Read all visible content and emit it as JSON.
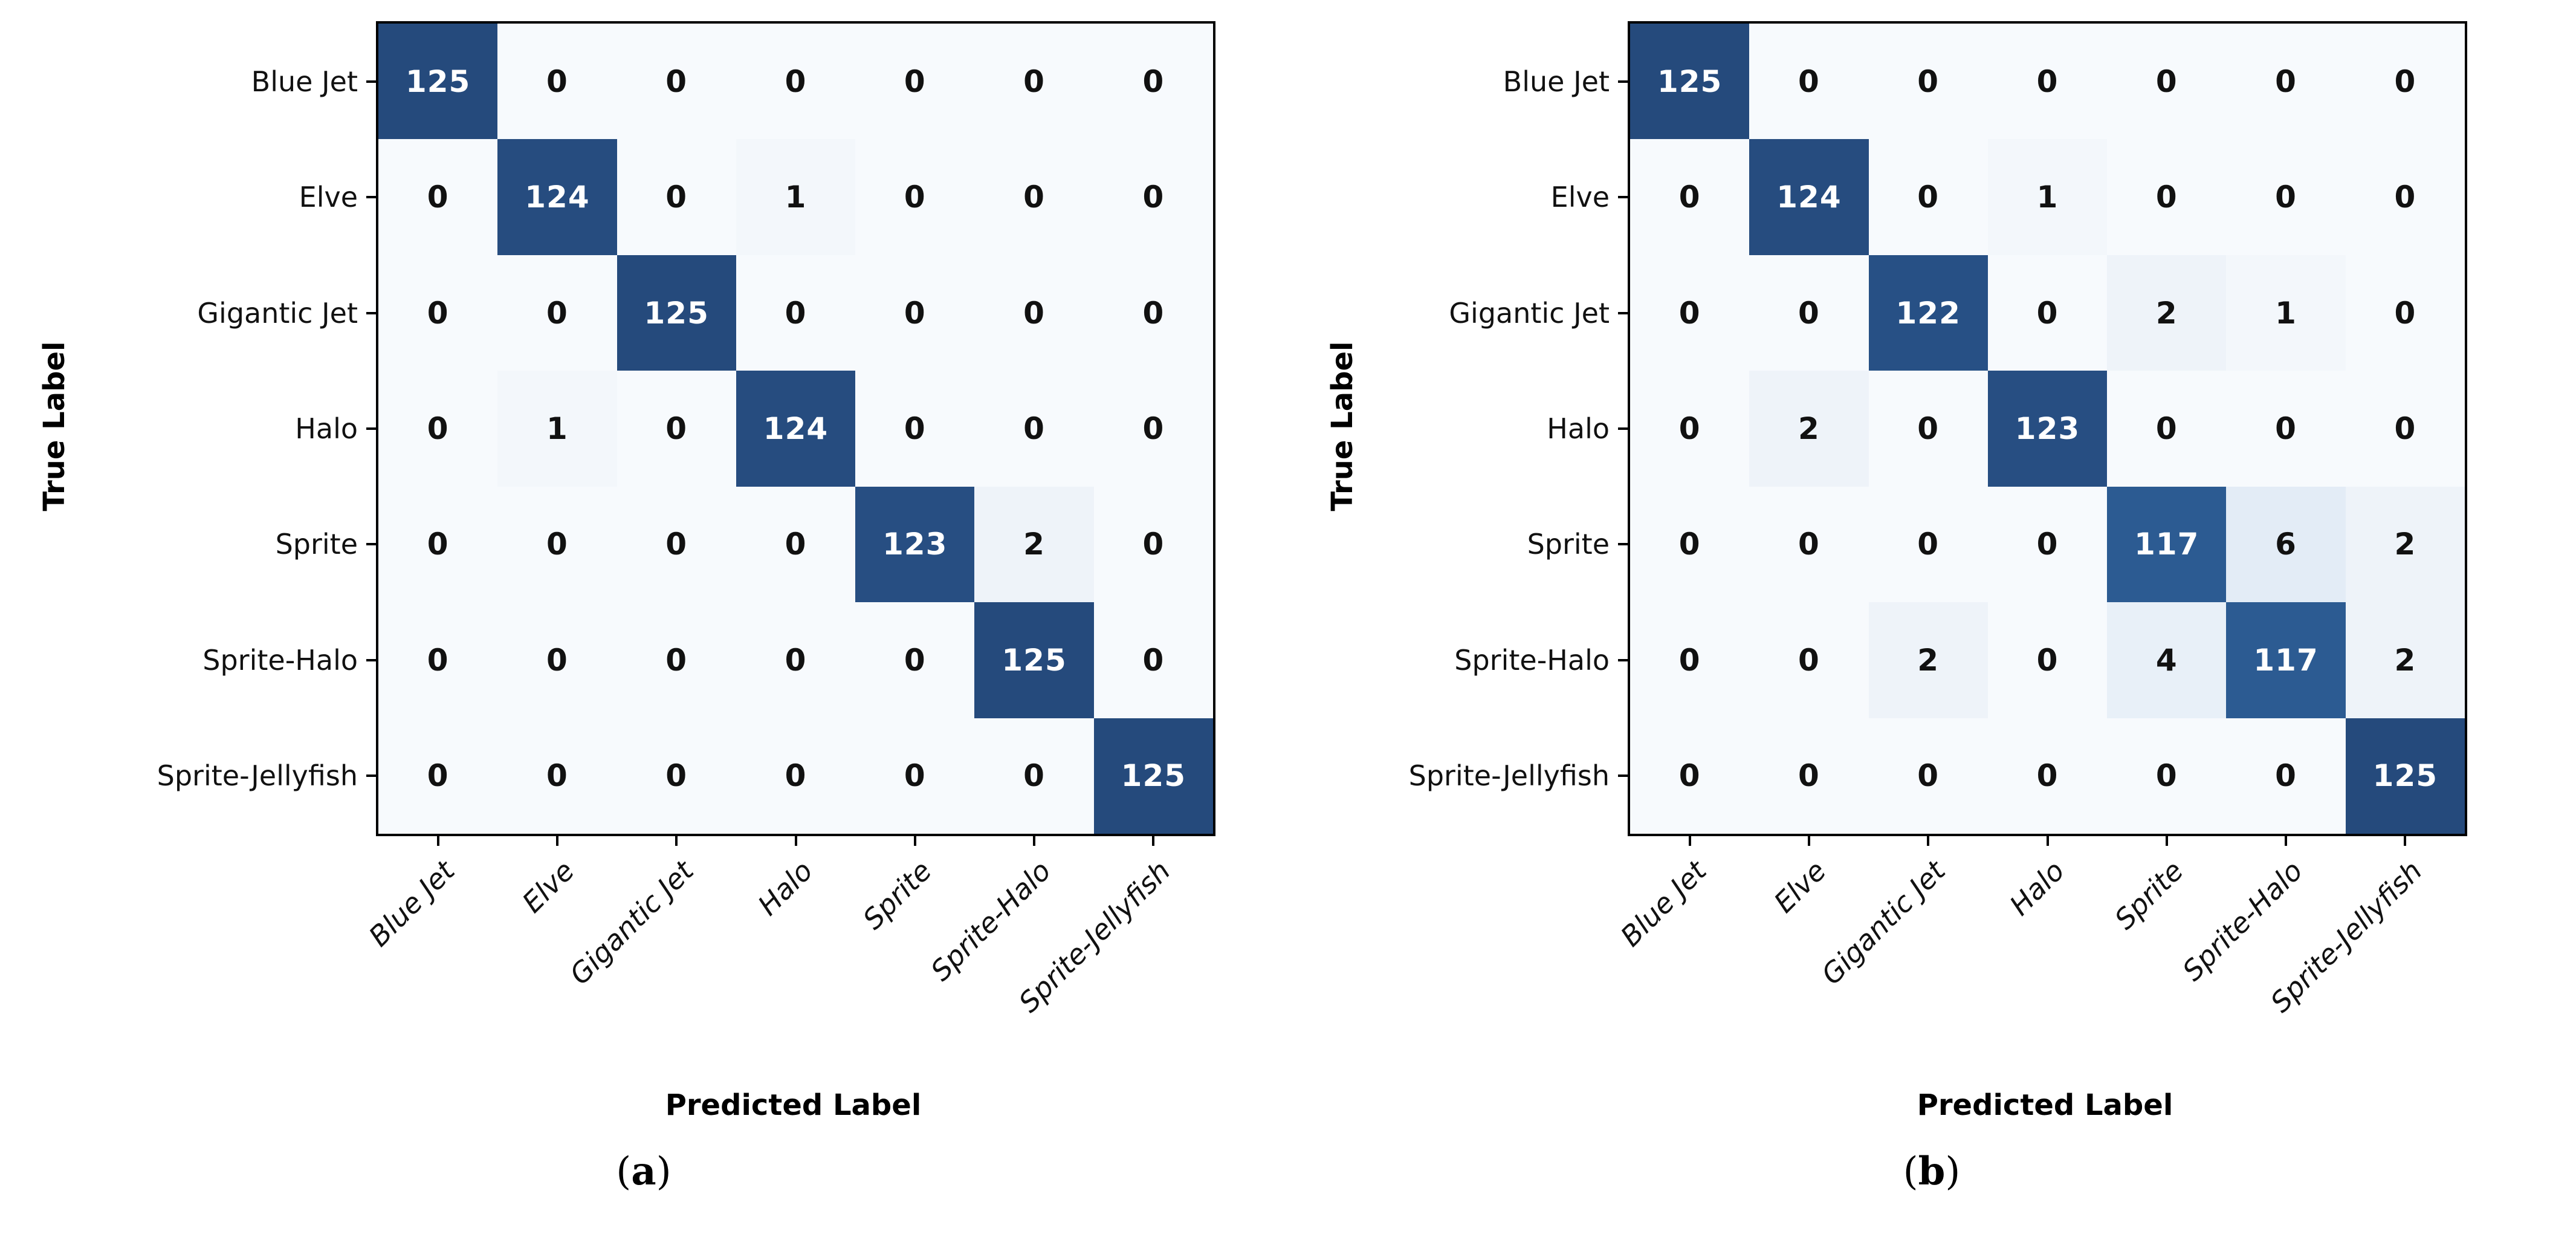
{
  "figure": {
    "description": "Two side-by-side confusion matrices",
    "classes": [
      "Blue Jet",
      "Elve",
      "Gigantic Jet",
      "Halo",
      "Sprite",
      "Sprite-Halo",
      "Sprite-Jellyfish"
    ]
  },
  "colors": {
    "diag_dark_blue": "#254a7c",
    "diag_soft_blue": "#2b5a92",
    "cell_background_light": "#f7fafd",
    "axis_black": "#000000",
    "text_on_dark": "#ffffff",
    "text_on_light": "#111111",
    "scale_stops": [
      [
        0.0,
        "#f7fafd"
      ],
      [
        0.016,
        "#eef3f9"
      ],
      [
        0.05,
        "#e2ecf6"
      ],
      [
        0.94,
        "#2b5a92"
      ],
      [
        1.0,
        "#254a7c"
      ]
    ]
  },
  "chart_data": [
    {
      "type": "heatmap",
      "subfigure": "a",
      "caption_prefix": "(",
      "caption_letter": "a",
      "caption_suffix": ")",
      "xlabel": "Predicted Label",
      "ylabel": "True Label",
      "x_categories": [
        "Blue Jet",
        "Elve",
        "Gigantic Jet",
        "Halo",
        "Sprite",
        "Sprite-Halo",
        "Sprite-Jellyfish"
      ],
      "y_categories": [
        "Blue Jet",
        "Elve",
        "Gigantic Jet",
        "Halo",
        "Sprite",
        "Sprite-Halo",
        "Sprite-Jellyfish"
      ],
      "vmin": 0,
      "vmax": 125,
      "legend": "none",
      "grid": false,
      "values": [
        [
          125,
          0,
          0,
          0,
          0,
          0,
          0
        ],
        [
          0,
          124,
          0,
          1,
          0,
          0,
          0
        ],
        [
          0,
          0,
          125,
          0,
          0,
          0,
          0
        ],
        [
          0,
          1,
          0,
          124,
          0,
          0,
          0
        ],
        [
          0,
          0,
          0,
          0,
          123,
          2,
          0
        ],
        [
          0,
          0,
          0,
          0,
          0,
          125,
          0
        ],
        [
          0,
          0,
          0,
          0,
          0,
          0,
          125
        ]
      ]
    },
    {
      "type": "heatmap",
      "subfigure": "b",
      "caption_prefix": "(",
      "caption_letter": "b",
      "caption_suffix": ")",
      "xlabel": "Predicted Label",
      "ylabel": "True Label",
      "x_categories": [
        "Blue Jet",
        "Elve",
        "Gigantic Jet",
        "Halo",
        "Sprite",
        "Sprite-Halo",
        "Sprite-Jellyfish"
      ],
      "y_categories": [
        "Blue Jet",
        "Elve",
        "Gigantic Jet",
        "Halo",
        "Sprite",
        "Sprite-Halo",
        "Sprite-Jellyfish"
      ],
      "vmin": 0,
      "vmax": 125,
      "legend": "none",
      "grid": false,
      "values": [
        [
          125,
          0,
          0,
          0,
          0,
          0,
          0
        ],
        [
          0,
          124,
          0,
          1,
          0,
          0,
          0
        ],
        [
          0,
          0,
          122,
          0,
          2,
          1,
          0
        ],
        [
          0,
          2,
          0,
          123,
          0,
          0,
          0
        ],
        [
          0,
          0,
          0,
          0,
          117,
          6,
          2
        ],
        [
          0,
          0,
          2,
          0,
          4,
          117,
          2
        ],
        [
          0,
          0,
          0,
          0,
          0,
          0,
          125
        ]
      ]
    }
  ]
}
